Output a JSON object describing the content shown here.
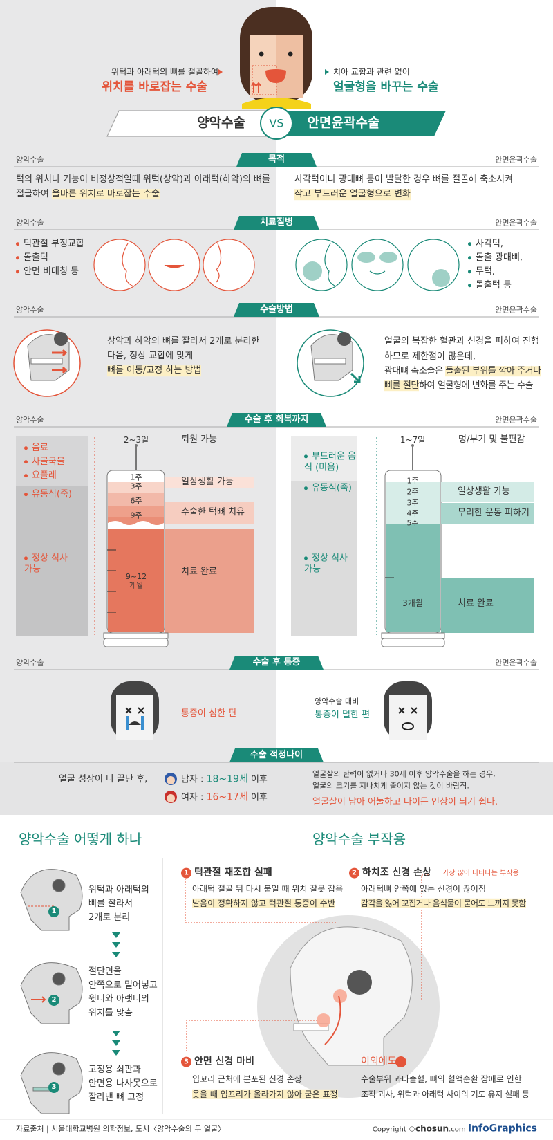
{
  "header": {
    "left_caption": "위턱과 아래턱의 뼈를 절골하여",
    "left_title": "위치를 바로잡는 수술",
    "right_caption": "치아 교합과 관련 없이",
    "right_title": "얼굴형을 바꾸는 수술",
    "banner_left": "양악수술",
    "vs": "VS",
    "banner_right": "안면윤곽수술"
  },
  "purpose": {
    "title": "목적",
    "left_label": "양악수술",
    "right_label": "안면윤곽수술",
    "left_lines": [
      "턱의 위치나 기능이 비정상적일때 위턱(상악)과 아래턱(하악)의 뼈를",
      "절골하여 "
    ],
    "left_highlight": "올바른 위치로 바로잡는 수술",
    "right_lines": [
      "사각턱이나 광대뼈 등이 발달한 경우 뼈를 절골해 축소시켜"
    ],
    "right_highlight": "작고 부드러운 얼굴형으로 변화"
  },
  "diseases": {
    "title": "치료질병",
    "left_label": "양악수술",
    "right_label": "안면윤곽수술",
    "left_items": [
      "턱관절 부정교합",
      "돌출턱",
      "안면 비대칭 등"
    ],
    "right_items": [
      "사각턱,",
      "돌출 광대뼈,",
      "무턱,",
      "돌출턱 등"
    ]
  },
  "method": {
    "title": "수술방법",
    "left_label": "양악수술",
    "right_label": "안면윤곽수술",
    "left_lines": [
      "상악과 하악의 뼈를 잘라서 2개로 분리한",
      "다음, 정상 교합에 맞게"
    ],
    "left_highlight": "뼈를 이동/고정 하는 방법",
    "right_lines": [
      "얼굴의 복잡한 혈관과 신경을 피하여 진행",
      "하므로 제한점이 많은데,",
      "광대뼈 축소술은 "
    ],
    "right_highlight_1": "돌출된 부위를 깍아 주거나",
    "right_highlight_2": "뼈를 절단",
    "right_tail": "하여 얼굴형에 변화를 주는 수술"
  },
  "recovery": {
    "title": "수술 후 회복까지",
    "left_label": "양악수술",
    "right_label": "안면윤곽수술",
    "left": {
      "diet": [
        "음료",
        "사골국물",
        "요플레",
        "유동식(죽)",
        "정상 식사 가능"
      ],
      "top_period": "2~3일",
      "top_label": "퇴원 가능",
      "weeks": [
        "1주",
        "3주",
        "6주",
        "9주"
      ],
      "months": "9~12 개월",
      "milestones": [
        "일상생활 가능",
        "수술한 턱뼈 치유",
        "치료 완료"
      ]
    },
    "right": {
      "diet": [
        "부드러운 음식 (미음)",
        "유동식(죽)",
        "정상 식사 가능"
      ],
      "top_period": "1~7일",
      "top_label": "멍/부기 및 불편감",
      "weeks": [
        "1주",
        "2주",
        "3주",
        "4주",
        "5주"
      ],
      "months": "3개월",
      "milestones": [
        "일상생활 가능",
        "무리한 운동 피하기",
        "치료 완료"
      ]
    }
  },
  "pain": {
    "title": "수술 후 통증",
    "left_label": "양악수술",
    "right_label": "안면윤곽수술",
    "left_text": "통증이 심한 편",
    "right_note": "양악수술 대비",
    "right_text": "통증이 덜한 편"
  },
  "age": {
    "title": "수술 적정나이",
    "intro": "얼굴 성장이 다 끝난 후,",
    "male_label": "남자 : ",
    "male_age": "18~19세",
    "female_label": "여자 : ",
    "female_age": "16~17세",
    "suffix": " 이후",
    "right_lines": [
      "얼굴살의 탄력이 없거나 30세 이후 양악수술을 하는 경우,",
      "얼굴의 크기를 지나치게 줄이지 않는 것이 바람직."
    ],
    "right_warning": "얼굴살이 남아 어눌하고 나이든 인상이 되기 쉽다."
  },
  "how": {
    "title": "양악수술 어떻게 하나",
    "steps": [
      {
        "number": "1",
        "lines": [
          "위턱과 아래턱의",
          "뼈를 잘라서",
          "2개로 분리"
        ]
      },
      {
        "number": "2",
        "lines": [
          "절단면을",
          "안쪽으로 밀어넣고",
          "윗니와 아랫니의",
          "위치를 맞춤"
        ]
      },
      {
        "number": "3",
        "lines": [
          "고정용 쇠판과",
          "안면용 나사못으로",
          "잘라낸 뼈 고정"
        ]
      }
    ]
  },
  "side_effects": {
    "title": "양악수술 부작용",
    "items": [
      {
        "number": "1",
        "title": "턱관절 재조합 실패",
        "text": "아래턱 절골 뒤 다시 붙일 때 위치 잘못 잡음",
        "highlight": "발음이 정확하지 않고 턱관절 통증이 수반"
      },
      {
        "number": "2",
        "title": "하치조 신경 손상",
        "note": "가장 많이 나타나는 부작용",
        "text": "아래턱뼈 안쪽에 있는 신경이 끊어짐",
        "highlight": "감각을 잃어 꼬집거나 음식물이 묻어도 느끼지 못함"
      },
      {
        "number": "3",
        "title": "안면 신경 마비",
        "text": "입꼬리 근처에 분포된 신경 손상",
        "highlight": "웃을 때 입꼬리가 올라가지 않아 굳은 표정"
      }
    ],
    "other": {
      "title": "이외에도",
      "lines": [
        "수술부위 과다출혈, 뼈의 혈액순환 장애로 인한",
        "조직 괴사, 위턱과 아래턱 사이의 기도 유지 실패 등"
      ]
    }
  },
  "footer": {
    "source": "자료출처 | 서울대학교병원 의학정보, 도서〈양악수술의 두 얼굴〉",
    "copyright": "Copyright ©",
    "brand": "chosun",
    "domain": ".com",
    "infographics": "InfoGraphics"
  }
}
